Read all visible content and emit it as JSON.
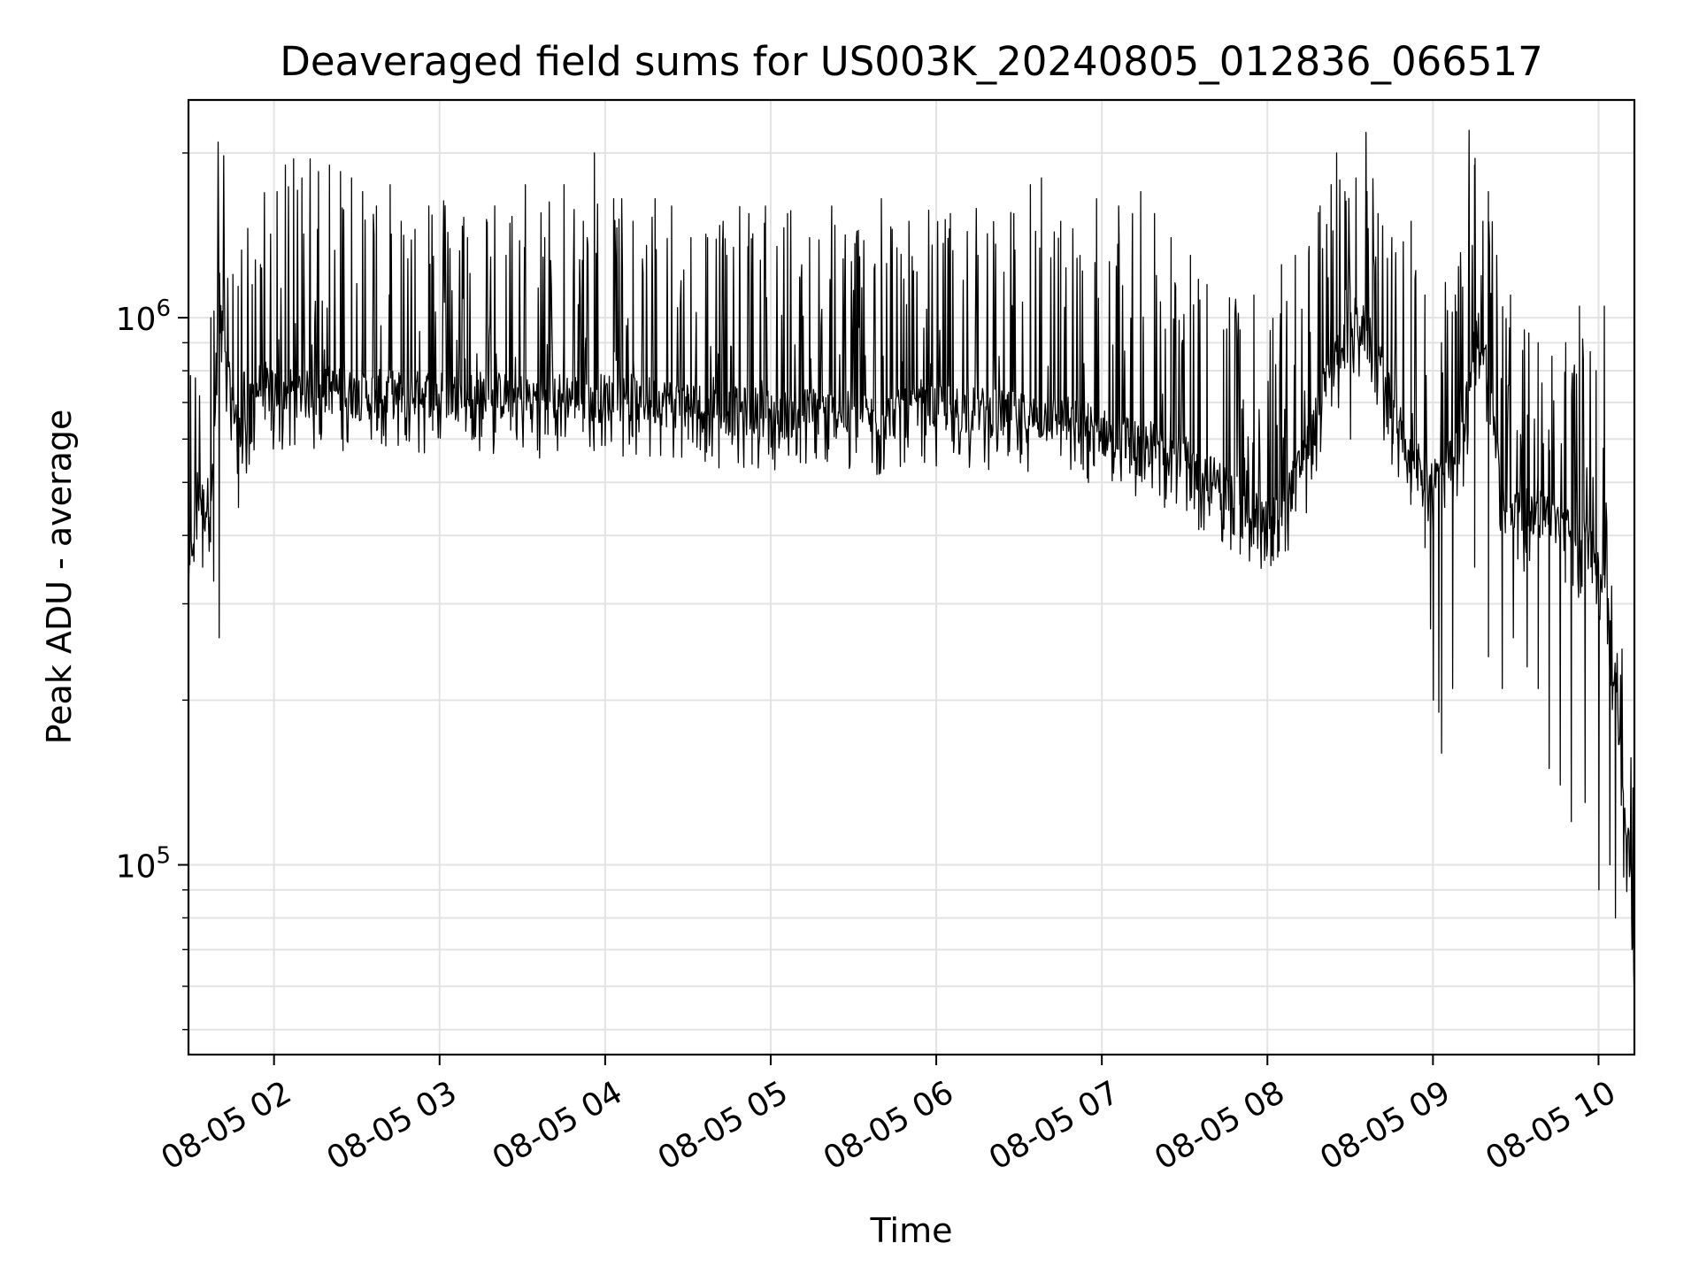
{
  "chart_data": {
    "type": "line",
    "title": "Deaveraged field sums for US003K_20240805_012836_066517",
    "xlabel": "Time",
    "ylabel": "Peak ADU - average",
    "x_tick_labels": [
      "08-05 02",
      "08-05 03",
      "08-05 04",
      "08-05 05",
      "08-05 06",
      "08-05 07",
      "08-05 08",
      "08-05 09",
      "08-05 10"
    ],
    "y_tick_labels": [
      {
        "base": "10",
        "exp": "5"
      },
      {
        "base": "10",
        "exp": "6"
      }
    ],
    "x_range": [
      "2024-08-05 01:29",
      "2024-08-05 10:13"
    ],
    "y_range": [
      45000,
      2500000
    ],
    "y_scale": "log",
    "grid": true,
    "line_color": "#000000",
    "series": [
      {
        "x": [
          "2024-08-05 01:29",
          "2024-08-05 01:32",
          "2024-08-05 01:35",
          "2024-08-05 01:38",
          "2024-08-05 01:40",
          "2024-08-05 01:42",
          "2024-08-05 01:44",
          "2024-08-05 01:46",
          "2024-08-05 01:48",
          "2024-08-05 01:50",
          "2024-08-05 01:52",
          "2024-08-05 01:54",
          "2024-08-05 01:56",
          "2024-08-05 01:59",
          "2024-08-05 02:04",
          "2024-08-05 02:09",
          "2024-08-05 02:14",
          "2024-08-05 02:20",
          "2024-08-05 02:26",
          "2024-08-05 02:32",
          "2024-08-05 02:40",
          "2024-08-05 02:48",
          "2024-08-05 02:56",
          "2024-08-05 03:05",
          "2024-08-05 03:15",
          "2024-08-05 03:25",
          "2024-08-05 03:35",
          "2024-08-05 03:45",
          "2024-08-05 03:55",
          "2024-08-05 04:05",
          "2024-08-05 04:15",
          "2024-08-05 04:25",
          "2024-08-05 04:35",
          "2024-08-05 04:45",
          "2024-08-05 04:55",
          "2024-08-05 05:05",
          "2024-08-05 05:15",
          "2024-08-05 05:25",
          "2024-08-05 05:35",
          "2024-08-05 05:45",
          "2024-08-05 05:55",
          "2024-08-05 06:05",
          "2024-08-05 06:15",
          "2024-08-05 06:25",
          "2024-08-05 06:35",
          "2024-08-05 06:45",
          "2024-08-05 06:55",
          "2024-08-05 07:05",
          "2024-08-05 07:15",
          "2024-08-05 07:25",
          "2024-08-05 07:35",
          "2024-08-05 07:45",
          "2024-08-05 07:55",
          "2024-08-05 08:00",
          "2024-08-05 08:05",
          "2024-08-05 08:10",
          "2024-08-05 08:15",
          "2024-08-05 08:20",
          "2024-08-05 08:25",
          "2024-08-05 08:30",
          "2024-08-05 08:35",
          "2024-08-05 08:40",
          "2024-08-05 08:45",
          "2024-08-05 08:50",
          "2024-08-05 08:55",
          "2024-08-05 09:00",
          "2024-08-05 09:05",
          "2024-08-05 09:10",
          "2024-08-05 09:13",
          "2024-08-05 09:16",
          "2024-08-05 09:20",
          "2024-08-05 09:25",
          "2024-08-05 09:30",
          "2024-08-05 09:35",
          "2024-08-05 09:40",
          "2024-08-05 09:45",
          "2024-08-05 09:50",
          "2024-08-05 09:55",
          "2024-08-05 10:00",
          "2024-08-05 10:03",
          "2024-08-05 10:06",
          "2024-08-05 10:08",
          "2024-08-05 10:10",
          "2024-08-05 10:12",
          "2024-08-05 10:13"
        ],
        "y": [
          300000,
          460000,
          420000,
          480000,
          1150000,
          780000,
          700000,
          640000,
          560000,
          600000,
          680000,
          700000,
          720000,
          690000,
          700000,
          690000,
          680000,
          700000,
          690000,
          680000,
          690000,
          680000,
          690000,
          680000,
          685000,
          680000,
          675000,
          680000,
          675000,
          680000,
          670000,
          660000,
          650000,
          640000,
          640000,
          630000,
          640000,
          630000,
          620000,
          630000,
          640000,
          650000,
          640000,
          630000,
          620000,
          620000,
          600000,
          570000,
          560000,
          540000,
          500000,
          460000,
          420000,
          400000,
          420000,
          480000,
          560000,
          680000,
          800000,
          950000,
          900000,
          800000,
          650000,
          560000,
          500000,
          480000,
          500000,
          550000,
          700000,
          900000,
          760000,
          450000,
          420000,
          400000,
          420000,
          400000,
          380000,
          370000,
          350000,
          300000,
          200000,
          150000,
          110000,
          90000,
          50000
        ],
        "peaks": [
          [
            "2024-08-05 01:37",
            1000000
          ],
          [
            "2024-08-05 01:45",
            1200000
          ],
          [
            "2024-08-05 01:52",
            1150000
          ],
          [
            "2024-08-05 01:55",
            1250000
          ],
          [
            "2024-08-05 02:01",
            1700000
          ],
          [
            "2024-08-05 02:04",
            1900000
          ],
          [
            "2024-08-05 02:07",
            1950000
          ],
          [
            "2024-08-05 02:10",
            1800000
          ],
          [
            "2024-08-05 02:13",
            1950000
          ],
          [
            "2024-08-05 02:16",
            1850000
          ],
          [
            "2024-08-05 02:20",
            1900000
          ],
          [
            "2024-08-05 02:24",
            1850000
          ],
          [
            "2024-08-05 02:28",
            1800000
          ],
          [
            "2024-08-05 02:32",
            1700000
          ],
          [
            "2024-08-05 02:37",
            1600000
          ],
          [
            "2024-08-05 02:42",
            1750000
          ],
          [
            "2024-08-05 02:46",
            1500000
          ],
          [
            "2024-08-05 02:51",
            1450000
          ],
          [
            "2024-08-05 02:56",
            1600000
          ],
          [
            "2024-08-05 03:03",
            1300000
          ],
          [
            "2024-08-05 03:10",
            1400000
          ],
          [
            "2024-08-05 03:17",
            1450000
          ],
          [
            "2024-08-05 03:24",
            1300000
          ],
          [
            "2024-08-05 03:31",
            1750000
          ],
          [
            "2024-08-05 03:38",
            1400000
          ],
          [
            "2024-08-05 03:45",
            1750000
          ],
          [
            "2024-08-05 03:52",
            1500000
          ],
          [
            "2024-08-05 03:56",
            2000000
          ],
          [
            "2024-08-05 04:03",
            1650000
          ],
          [
            "2024-08-05 04:10",
            1500000
          ],
          [
            "2024-08-05 04:18",
            1650000
          ],
          [
            "2024-08-05 04:24",
            1600000
          ],
          [
            "2024-08-05 04:31",
            1400000
          ],
          [
            "2024-08-05 04:37",
            1400000
          ],
          [
            "2024-08-05 04:44",
            1300000
          ],
          [
            "2024-08-05 04:52",
            1550000
          ],
          [
            "2024-08-05 04:58",
            1600000
          ],
          [
            "2024-08-05 05:06",
            1550000
          ],
          [
            "2024-08-05 05:14",
            1400000
          ],
          [
            "2024-08-05 05:22",
            1600000
          ],
          [
            "2024-08-05 05:31",
            1400000
          ],
          [
            "2024-08-05 05:40",
            1650000
          ],
          [
            "2024-08-05 05:50",
            1500000
          ],
          [
            "2024-08-05 06:05",
            1550000
          ],
          [
            "2024-08-05 06:15",
            1300000
          ],
          [
            "2024-08-05 06:28",
            1550000
          ],
          [
            "2024-08-05 06:34",
            1750000
          ],
          [
            "2024-08-05 06:38",
            1800000
          ],
          [
            "2024-08-05 06:45",
            1500000
          ],
          [
            "2024-08-05 06:52",
            1300000
          ],
          [
            "2024-08-05 06:58",
            1650000
          ],
          [
            "2024-08-05 07:06",
            1600000
          ],
          [
            "2024-08-05 07:11",
            1550000
          ],
          [
            "2024-08-05 07:14",
            1700000
          ],
          [
            "2024-08-05 07:19",
            1550000
          ],
          [
            "2024-08-05 07:25",
            1400000
          ],
          [
            "2024-08-05 07:32",
            1300000
          ],
          [
            "2024-08-05 07:38",
            1150000
          ],
          [
            "2024-08-05 07:44",
            950000
          ],
          [
            "2024-08-05 07:50",
            950000
          ],
          [
            "2024-08-05 07:55",
            1100000
          ],
          [
            "2024-08-05 08:05",
            1250000
          ],
          [
            "2024-08-05 08:10",
            1300000
          ],
          [
            "2024-08-05 08:15",
            1350000
          ],
          [
            "2024-08-05 08:19",
            1600000
          ],
          [
            "2024-08-05 08:23",
            1750000
          ],
          [
            "2024-08-05 08:25",
            2000000
          ],
          [
            "2024-08-05 08:28",
            1700000
          ],
          [
            "2024-08-05 08:32",
            1800000
          ],
          [
            "2024-08-05 08:36",
            1700000
          ],
          [
            "2024-08-05 08:40",
            1550000
          ],
          [
            "2024-08-05 08:45",
            1400000
          ],
          [
            "2024-08-05 08:52",
            1500000
          ],
          [
            "2024-08-05 08:57",
            1100000
          ],
          [
            "2024-08-05 09:03",
            900000
          ],
          [
            "2024-08-05 09:08",
            1100000
          ],
          [
            "2024-08-05 09:10",
            1150000
          ],
          [
            "2024-08-05 09:13",
            2200000
          ],
          [
            "2024-08-05 09:15",
            1900000
          ],
          [
            "2024-08-05 09:18",
            1500000
          ],
          [
            "2024-08-05 09:20",
            1700000
          ],
          [
            "2024-08-05 09:23",
            1300000
          ],
          [
            "2024-08-05 09:28",
            1100000
          ],
          [
            "2024-08-05 09:33",
            950000
          ],
          [
            "2024-08-05 09:38",
            900000
          ],
          [
            "2024-08-05 09:43",
            850000
          ],
          [
            "2024-08-05 09:48",
            900000
          ],
          [
            "2024-08-05 09:53",
            1050000
          ],
          [
            "2024-08-05 09:59",
            800000
          ],
          [
            "2024-08-05 10:02",
            1050000
          ]
        ],
        "troughs": [
          [
            "2024-08-05 01:34",
            350000
          ],
          [
            "2024-08-05 01:38",
            330000
          ],
          [
            "2024-08-05 01:40",
            260000
          ],
          [
            "2024-08-05 01:47",
            450000
          ],
          [
            "2024-08-05 04:20",
            560000
          ],
          [
            "2024-08-05 04:30",
            600000
          ],
          [
            "2024-08-05 05:00",
            580000
          ],
          [
            "2024-08-05 06:45",
            560000
          ],
          [
            "2024-08-05 06:55",
            500000
          ],
          [
            "2024-08-05 07:10",
            520000
          ],
          [
            "2024-08-05 07:25",
            480000
          ],
          [
            "2024-08-05 07:35",
            410000
          ],
          [
            "2024-08-05 07:50",
            370000
          ],
          [
            "2024-08-05 08:02",
            360000
          ],
          [
            "2024-08-05 08:14",
            440000
          ],
          [
            "2024-08-05 08:30",
            600000
          ],
          [
            "2024-08-05 08:45",
            540000
          ],
          [
            "2024-08-05 08:52",
            480000
          ],
          [
            "2024-08-05 08:57",
            380000
          ],
          [
            "2024-08-05 08:59",
            270000
          ],
          [
            "2024-08-05 09:00",
            200000
          ],
          [
            "2024-08-05 09:02",
            190000
          ],
          [
            "2024-08-05 09:03",
            160000
          ],
          [
            "2024-08-05 09:07",
            210000
          ],
          [
            "2024-08-05 09:15",
            350000
          ],
          [
            "2024-08-05 09:20",
            240000
          ],
          [
            "2024-08-05 09:25",
            210000
          ],
          [
            "2024-08-05 09:29",
            260000
          ],
          [
            "2024-08-05 09:34",
            230000
          ],
          [
            "2024-08-05 09:38",
            210000
          ],
          [
            "2024-08-05 09:42",
            150000
          ],
          [
            "2024-08-05 09:46",
            140000
          ],
          [
            "2024-08-05 09:50",
            120000
          ],
          [
            "2024-08-05 09:55",
            130000
          ],
          [
            "2024-08-05 10:00",
            90000
          ],
          [
            "2024-08-05 10:04",
            100000
          ],
          [
            "2024-08-05 10:06",
            80000
          ],
          [
            "2024-08-05 10:09",
            95000
          ],
          [
            "2024-08-05 10:12",
            70000
          ]
        ]
      }
    ]
  }
}
